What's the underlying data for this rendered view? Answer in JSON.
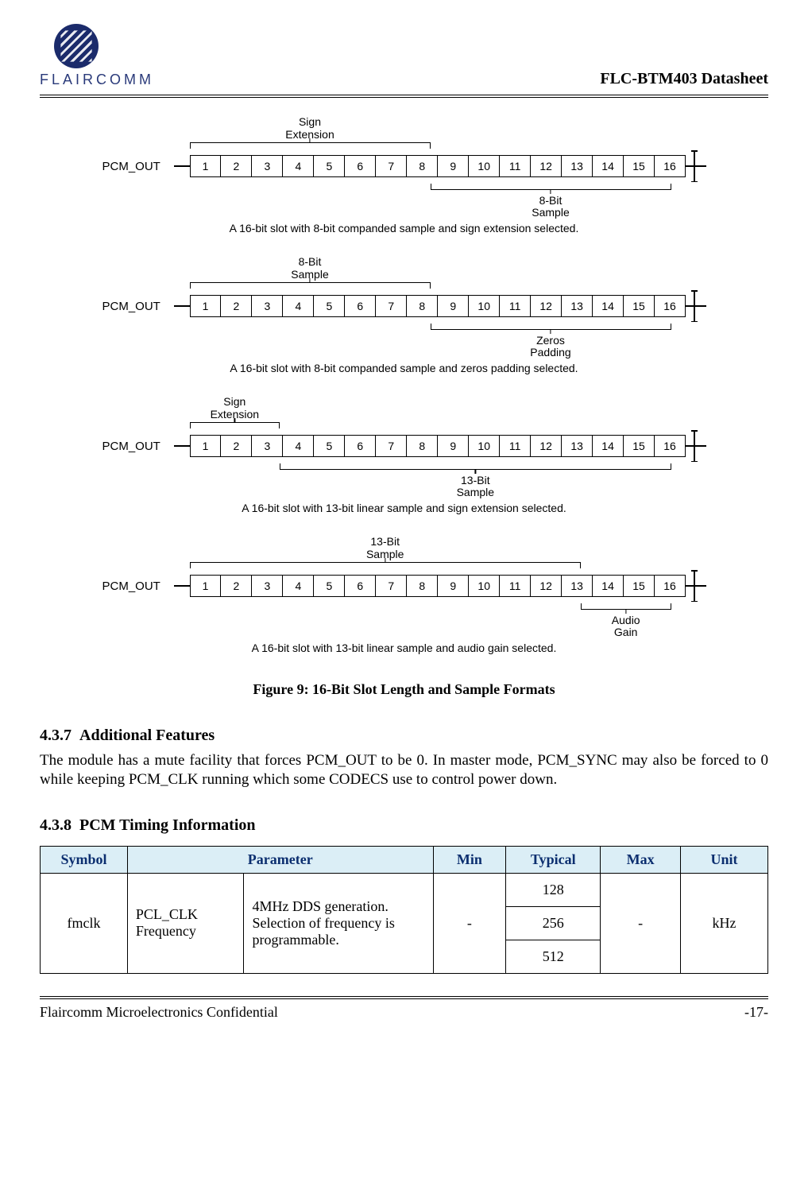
{
  "header": {
    "company": "FLAIRCOMM",
    "doc_title": "FLC-BTM403 Datasheet"
  },
  "diagrams": {
    "common": {
      "pcm_label": "PCM_OUT",
      "slot_count": 16
    },
    "d1": {
      "above": {
        "label": "Sign\nExtension",
        "start": 1,
        "end": 8
      },
      "below": {
        "label": "8-Bit\nSample",
        "start": 9,
        "end": 16
      },
      "caption": "A 16-bit slot with 8-bit companded sample and sign extension selected."
    },
    "d2": {
      "above": {
        "label": "8-Bit\nSample",
        "start": 1,
        "end": 8
      },
      "below": {
        "label": "Zeros\nPadding",
        "start": 9,
        "end": 16
      },
      "caption": "A 16-bit slot with 8-bit companded sample and zeros padding selected."
    },
    "d3": {
      "above": {
        "label": "Sign\nExtension",
        "start": 1,
        "end": 3
      },
      "below": {
        "label": "13-Bit\nSample",
        "start": 4,
        "end": 16
      },
      "caption": "A 16-bit slot with 13-bit linear sample and sign extension selected."
    },
    "d4": {
      "above": {
        "label": "13-Bit\nSample",
        "start": 1,
        "end": 13
      },
      "below": {
        "label": "Audio\nGain",
        "start": 14,
        "end": 16
      },
      "caption": "A 16-bit slot with 13-bit linear sample and audio gain selected."
    }
  },
  "figure_caption": "Figure 9: 16-Bit Slot Length and Sample Formats",
  "sections": {
    "s437": {
      "num": "4.3.7",
      "title": "Additional Features",
      "body": "The module has a mute facility that forces PCM_OUT to be 0. In master mode, PCM_SYNC may also be forced to 0 while keeping PCM_CLK running which some CODECS use to control power down."
    },
    "s438": {
      "num": "4.3.8",
      "title": "PCM Timing Information"
    }
  },
  "table": {
    "headers": {
      "c1": "Symbol",
      "c2": "Parameter",
      "c3": "Min",
      "c4": "Typical",
      "c5": "Max",
      "c6": "Unit"
    },
    "row1": {
      "symbol": "fmclk",
      "param_name": "PCL_CLK Frequency",
      "param_desc": "4MHz DDS generation. Selection of frequency is programmable.",
      "min": "-",
      "typical": [
        "128",
        "256",
        "512"
      ],
      "max": "-",
      "unit": "kHz"
    },
    "colwidths": {
      "symbol": "12%",
      "param_name": "16%",
      "param_desc": "26%",
      "min": "10%",
      "typical": "13%",
      "max": "11%",
      "unit": "12%"
    },
    "colors": {
      "header_bg": "#dbeef6",
      "header_fg": "#0b2e6f"
    }
  },
  "footer": {
    "left": "Flaircomm Microelectronics Confidential",
    "right": "-17-"
  }
}
